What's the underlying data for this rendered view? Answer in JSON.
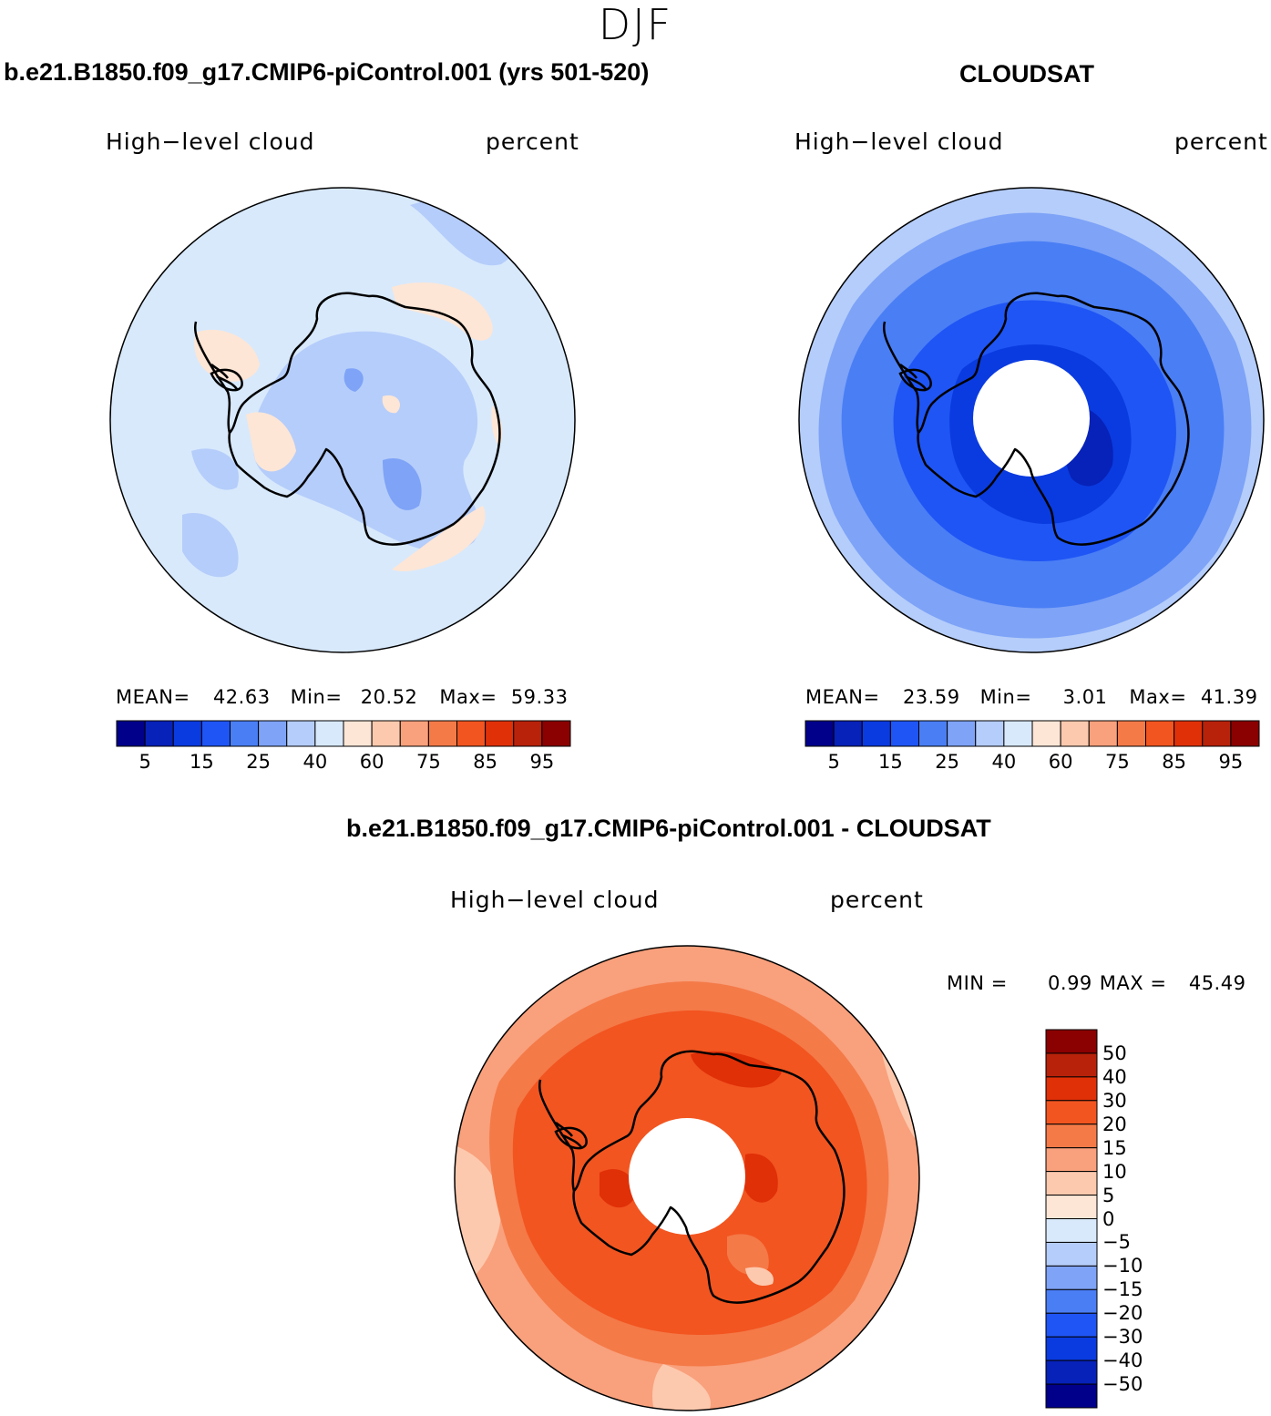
{
  "figure": {
    "season": "DJF",
    "diff_title": "b.e21.B1850.f09_g17.CMIP6-piControl.001 - CLOUDSAT"
  },
  "panels": {
    "model": {
      "title": "b.e21.B1850.f09_g17.CMIP6-piControl.001 (yrs 501-520)",
      "variable": "High−level cloud",
      "units": "percent",
      "mean_label": "MEAN=",
      "mean": "42.63",
      "min_label": "Min=",
      "min": "20.52",
      "max_label": "Max=",
      "max": "59.33"
    },
    "obs": {
      "title": "CLOUDSAT",
      "variable": "High−level cloud",
      "units": "percent",
      "mean_label": "MEAN=",
      "mean": "23.59",
      "min_label": "Min=",
      "min": "3.01",
      "max_label": "Max=",
      "max": "41.39"
    },
    "diff": {
      "variable": "High−level cloud",
      "units": "percent",
      "min_label": "MIN =",
      "min": "0.99",
      "max_label": "MAX =",
      "max": "45.49"
    }
  },
  "colorbar_abs": {
    "colors": [
      "#00008b",
      "#0722b8",
      "#0a3be0",
      "#1f55f5",
      "#4a7ef5",
      "#7ea3f7",
      "#b5cdfa",
      "#d8e9fc",
      "#fde6d6",
      "#fdc9ae",
      "#f9a07c",
      "#f47a48",
      "#f25520",
      "#e03008",
      "#b8220a",
      "#8b0000"
    ],
    "tick_labels": [
      "5",
      "15",
      "25",
      "40",
      "60",
      "75",
      "85",
      "95"
    ]
  },
  "colorbar_diff": {
    "colors": [
      "#8b0000",
      "#b8220a",
      "#e03008",
      "#f25520",
      "#f47a48",
      "#f9a07c",
      "#fdc9ae",
      "#fde6d6",
      "#d8e9fc",
      "#b5cdfa",
      "#7ea3f7",
      "#4a7ef5",
      "#1f55f5",
      "#0a3be0",
      "#0722b8",
      "#00008b"
    ],
    "tick_labels": [
      "50",
      "40",
      "30",
      "20",
      "15",
      "10",
      "5",
      "0",
      "−5",
      "−10",
      "−15",
      "−20",
      "−30",
      "−40",
      "−50"
    ]
  },
  "map_colors": {
    "model_base": "#d8e9fc",
    "model_low": "#b5cdfa",
    "model_lower": "#7ea3f7",
    "model_high": "#fde6d6",
    "obs_outer": "#b5cdfa",
    "obs_mid": "#7ea3f7",
    "obs_inner": "#4a7ef5",
    "obs_core": "#1f55f5",
    "obs_deep": "#0a3be0",
    "obs_deepest": "#0722b8",
    "diff_outer": "#f9a07c",
    "diff_mid": "#f47a48",
    "diff_inner": "#f25520",
    "diff_core": "#e03008",
    "diff_light": "#fdc9ae"
  }
}
